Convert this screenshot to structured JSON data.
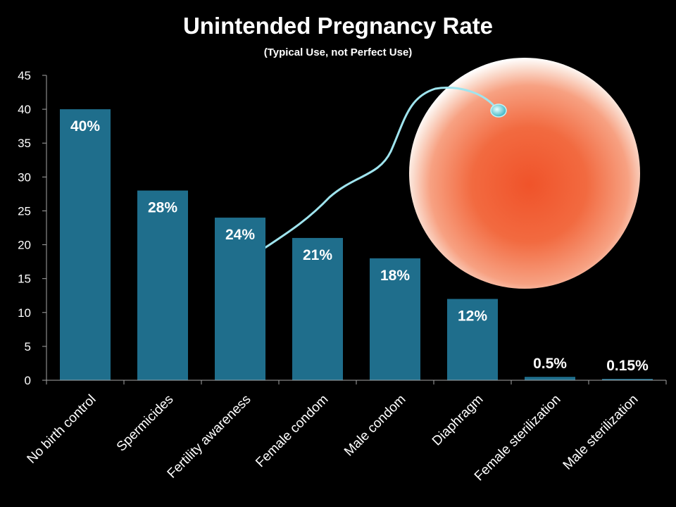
{
  "chart_data": {
    "type": "bar",
    "title": "Unintended Pregnancy Rate",
    "subtitle": "(Typical Use, not Perfect Use)",
    "categories": [
      "No birth control",
      "Spermicides",
      "Fertility awareness",
      "Female condom",
      "Male condom",
      "Diaphragm",
      "Female sterilization",
      "Male sterilization"
    ],
    "values": [
      40,
      28,
      24,
      21,
      18,
      12,
      0.5,
      0.15
    ],
    "data_labels": [
      "40%",
      "28%",
      "24%",
      "21%",
      "18%",
      "12%",
      "0.5%",
      "0.15%"
    ],
    "xlabel": "",
    "ylabel": "",
    "ylim": [
      0,
      45
    ],
    "yticks": [
      0,
      5,
      10,
      15,
      20,
      25,
      30,
      35,
      40,
      45
    ],
    "grid": false,
    "legend": "none",
    "bar_color": "#1f6e8c",
    "axis_color": "#a6a6a6",
    "illustration": "egg-and-sperm"
  }
}
